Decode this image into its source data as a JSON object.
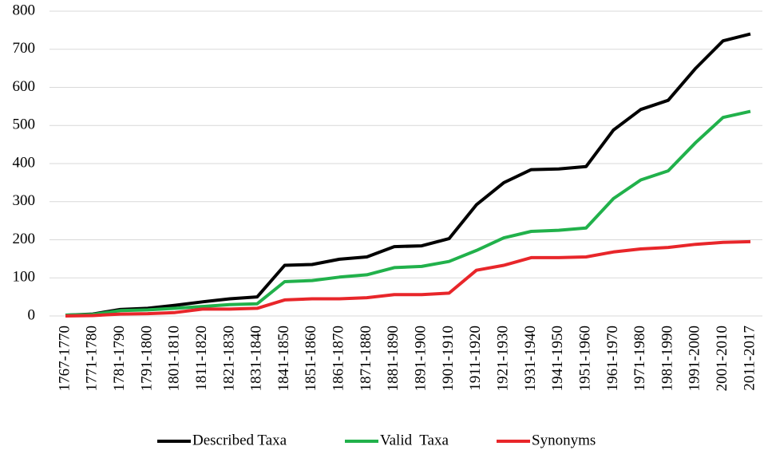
{
  "chart_data": {
    "type": "line",
    "categories": [
      "1767-1770",
      "1771-1780",
      "1781-1790",
      "1791-1800",
      "1801-1810",
      "1811-1820",
      "1821-1830",
      "1831-1840",
      "1841-1850",
      "1851-1860",
      "1861-1870",
      "1871-1880",
      "1881-1890",
      "1891-1900",
      "1901-1910",
      "1911-1920",
      "1921-1930",
      "1931-1940",
      "1941-1950",
      "1951-1960",
      "1961-1970",
      "1971-1980",
      "1981-1990",
      "1991-2000",
      "2001-2010",
      "2011-2017"
    ],
    "series": [
      {
        "name": "Described Taxa",
        "color": "#000000",
        "values": [
          2,
          5,
          17,
          20,
          28,
          37,
          45,
          50,
          133,
          135,
          149,
          155,
          182,
          184,
          203,
          292,
          350,
          384,
          386,
          392,
          488,
          542,
          566,
          650,
          722,
          740
        ]
      },
      {
        "name": "Valid  Taxa",
        "color": "#21b14b",
        "values": [
          2,
          4,
          14,
          16,
          20,
          25,
          30,
          32,
          90,
          93,
          102,
          108,
          127,
          130,
          143,
          172,
          205,
          222,
          225,
          231,
          308,
          357,
          381,
          455,
          521,
          537
        ]
      },
      {
        "name": "Synonyms",
        "color": "#e8262a",
        "values": [
          0,
          1,
          5,
          6,
          9,
          18,
          18,
          20,
          42,
          45,
          45,
          48,
          56,
          56,
          60,
          120,
          133,
          153,
          153,
          155,
          168,
          176,
          180,
          188,
          193,
          195
        ]
      }
    ],
    "ylim": [
      0,
      800
    ],
    "yticks": [
      0,
      100,
      200,
      300,
      400,
      500,
      600,
      700,
      800
    ],
    "grid": true,
    "legend": "bottom"
  }
}
